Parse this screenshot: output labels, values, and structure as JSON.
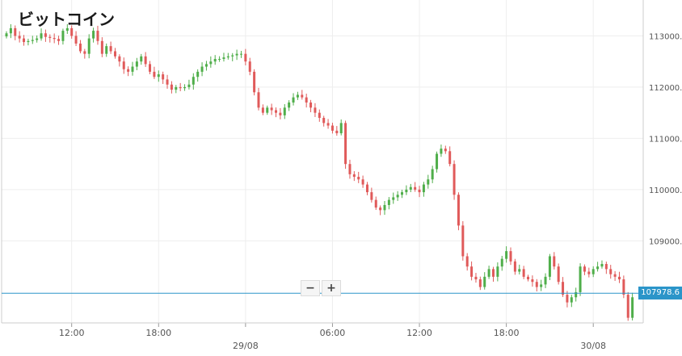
{
  "title": "ビットコイン",
  "zoom": {
    "minus_label": "−",
    "plus_label": "+"
  },
  "current_price_label": "107978.6",
  "colors": {
    "up": "#4fae4a",
    "down": "#e05a5a",
    "price_line": "#2b95c9",
    "grid": "#eeeeee",
    "axis_text": "#555555"
  },
  "chart_data": {
    "type": "candlestick",
    "title": "ビットコイン",
    "ylim": [
      107400,
      113700
    ],
    "y_ticks": [
      109000.0,
      110000.0,
      111000.0,
      112000.0,
      113000.0
    ],
    "y_tick_labels": [
      "109000.0",
      "110000.0",
      "111000.0",
      "112000.0",
      "113000.0"
    ],
    "x_ticks": [
      {
        "label": "12:00",
        "index": 15
      },
      {
        "label": "18:00",
        "index": 35
      },
      {
        "label": "29/08",
        "index": 55
      },
      {
        "label": "06:00",
        "index": 75
      },
      {
        "label": "12:00",
        "index": 95
      },
      {
        "label": "18:00",
        "index": 115
      },
      {
        "label": "30/08",
        "index": 135
      }
    ],
    "current_price": 107978.6,
    "candle_count": 145,
    "key_closes": [
      113050,
      113150,
      113000,
      112950,
      112880,
      112900,
      112920,
      112950,
      113050,
      112980,
      112960,
      112940,
      112900,
      113100,
      113150,
      113000,
      112850,
      112700,
      112650,
      112950,
      113100,
      112900,
      112650,
      112800,
      112700,
      112600,
      112500,
      112350,
      112300,
      112400,
      112500,
      112600,
      112450,
      112300,
      112200,
      112250,
      112150,
      112050,
      111950,
      112000,
      111980,
      112000,
      112050,
      112200,
      112300,
      112400,
      112450,
      112500,
      112550,
      112550,
      112580,
      112600,
      112620,
      112650,
      112650,
      112500,
      112300,
      111900,
      111600,
      111500,
      111600,
      111550,
      111500,
      111450,
      111600,
      111700,
      111800,
      111850,
      111800,
      111700,
      111600,
      111500,
      111400,
      111300,
      111250,
      111150,
      111100,
      111300,
      110500,
      110300,
      110250,
      110200,
      110100,
      109950,
      109800,
      109650,
      109600,
      109700,
      109800,
      109850,
      109900,
      109950,
      110000,
      110050,
      110000,
      109950,
      110100,
      110200,
      110400,
      110700,
      110800,
      110750,
      110500,
      109900,
      109300,
      108700,
      108500,
      108300,
      108250,
      108100,
      108300,
      108450,
      108300,
      108500,
      108650,
      108800,
      108600,
      108400,
      108450,
      108300,
      108250,
      108200,
      108100,
      108150,
      108300,
      108700,
      108500,
      108200,
      107950,
      107800,
      107900,
      108000,
      108500,
      108400,
      108350,
      108450,
      108500,
      108550,
      108450,
      108350,
      108300,
      108250,
      107950,
      107500,
      107900
    ]
  }
}
